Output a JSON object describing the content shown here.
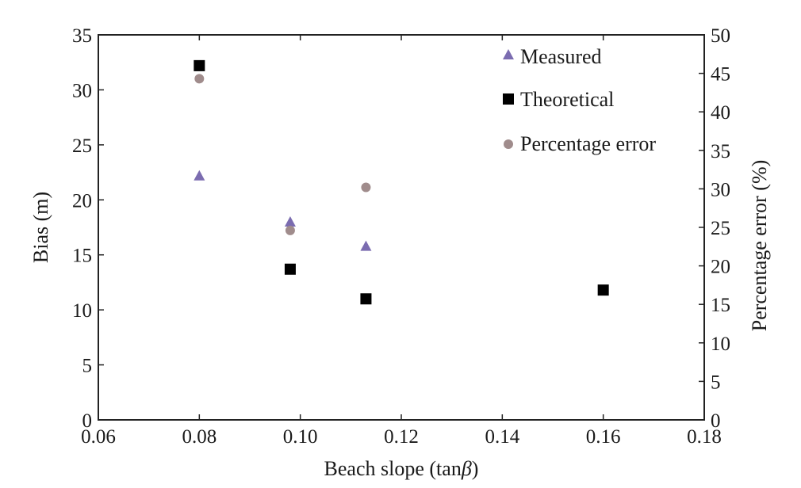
{
  "chart_data": {
    "type": "scatter",
    "xlabel_prefix": "Beach slope (tan",
    "xlabel_symbol": "β",
    "xlabel_suffix": ")",
    "ylabel": "Bias (m)",
    "y2label": "Percentage error (%)",
    "xlim": [
      0.06,
      0.18
    ],
    "ylim": [
      0,
      35
    ],
    "y2lim": [
      0,
      50
    ],
    "xticks": [
      "0.06",
      "0.08",
      "0.10",
      "0.12",
      "0.14",
      "0.16",
      "0.18"
    ],
    "yticks": [
      "0",
      "5",
      "10",
      "15",
      "20",
      "25",
      "30",
      "35"
    ],
    "y2ticks": [
      "0",
      "5",
      "10",
      "15",
      "20",
      "25",
      "30",
      "35",
      "40",
      "45",
      "50"
    ],
    "legend_position": "top-right",
    "series": [
      {
        "name": "Measured",
        "axis": "left",
        "marker": "triangle",
        "color": "#7b6cb0",
        "points": [
          [
            0.08,
            22.2
          ],
          [
            0.098,
            18.0
          ],
          [
            0.113,
            15.8
          ]
        ]
      },
      {
        "name": "Theoretical",
        "axis": "left",
        "marker": "square",
        "color": "#000000",
        "points": [
          [
            0.08,
            32.2
          ],
          [
            0.098,
            13.7
          ],
          [
            0.113,
            11.0
          ],
          [
            0.16,
            11.8
          ]
        ]
      },
      {
        "name": "Percentage error",
        "axis": "right",
        "marker": "circle",
        "color": "#a08c8c",
        "points": [
          [
            0.08,
            44.3
          ],
          [
            0.098,
            24.6
          ],
          [
            0.113,
            30.2
          ]
        ]
      }
    ]
  }
}
